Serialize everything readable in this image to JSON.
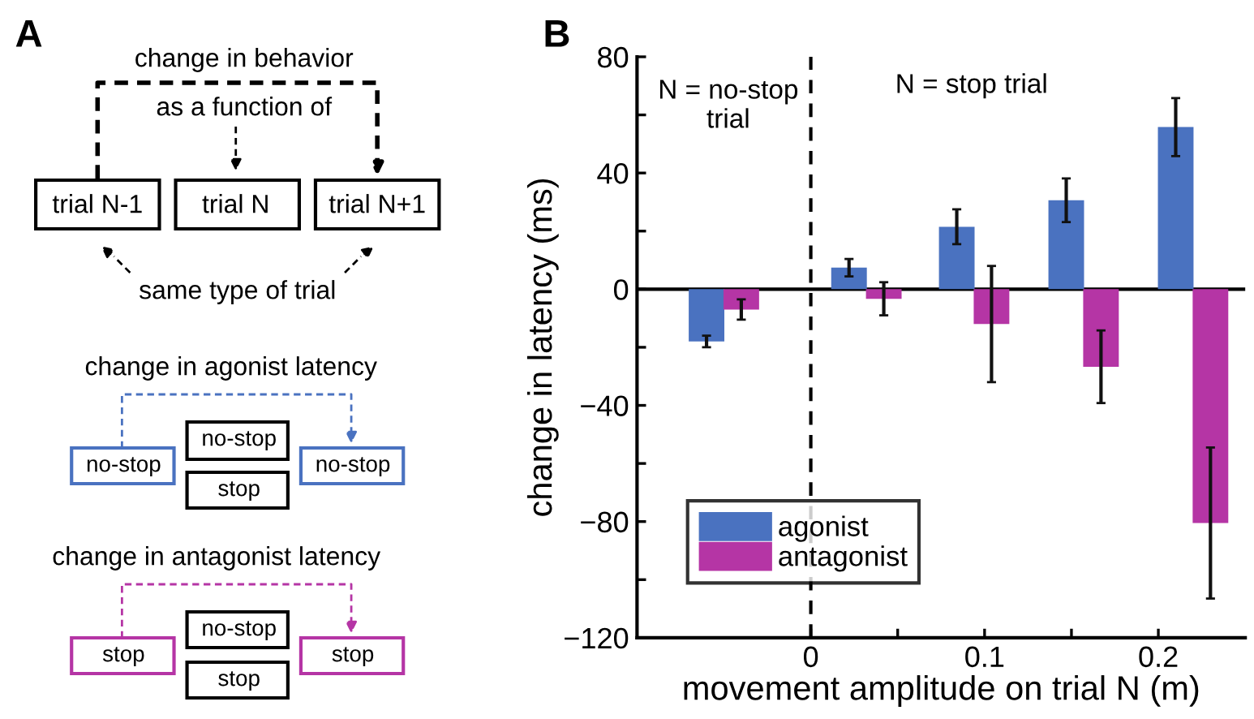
{
  "chart_data": [
    {
      "type": "other",
      "title": "A",
      "annotations": [
        "change in behavior",
        "as a function of",
        "trial N-1",
        "trial N",
        "trial N+1",
        "same type of trial",
        "change in agonist latency",
        "no-stop",
        "no-stop",
        "stop",
        "no-stop",
        "change in antagonist latency",
        "stop",
        "no-stop",
        "stop",
        "stop"
      ]
    },
    {
      "type": "bar",
      "title": "B",
      "xlabel": "movement amplitude on trial N (m)",
      "ylabel": "change in latency (ms)",
      "series": [
        {
          "name": "agonist",
          "color": "#4a72c0",
          "x": [
            -0.06,
            0.022,
            0.084,
            0.147,
            0.21
          ],
          "values": [
            -18,
            7.4,
            21.5,
            30.6,
            55.8
          ],
          "errors": [
            2,
            3,
            6,
            7.5,
            10
          ]
        },
        {
          "name": "antagonist",
          "color": "#b535a5",
          "x": [
            -0.04,
            0.042,
            0.104,
            0.167,
            0.23
          ],
          "values": [
            -7,
            -3.3,
            -12,
            -26.7,
            -80.5
          ],
          "errors": [
            3.5,
            5.7,
            20,
            12.5,
            26
          ]
        }
      ],
      "xlim": [
        -0.1,
        0.25
      ],
      "xticks": [
        0,
        {
          "value": 0.05,
          "label": null
        },
        0.1,
        {
          "value": 0.15,
          "label": null
        },
        0.2
      ],
      "ylim": [
        -120,
        80
      ],
      "yticks": [
        -120,
        {
          "value": -100,
          "label": null
        },
        -80,
        {
          "value": -60,
          "label": null
        },
        -40,
        {
          "value": -20,
          "label": null
        },
        0,
        {
          "value": 20,
          "label": null
        },
        40,
        {
          "value": 60,
          "label": null
        },
        80
      ],
      "ref_lines": [
        {
          "axis": "x",
          "value": 0,
          "color": "#000000",
          "line_style": "dashed"
        },
        {
          "axis": "y",
          "value": 0,
          "color": "#000000",
          "line_style": "solid"
        }
      ],
      "annotations": [
        "N = no-stop\ntrial",
        "N = stop trial"
      ],
      "legend": "bottom left",
      "grid": false
    }
  ]
}
